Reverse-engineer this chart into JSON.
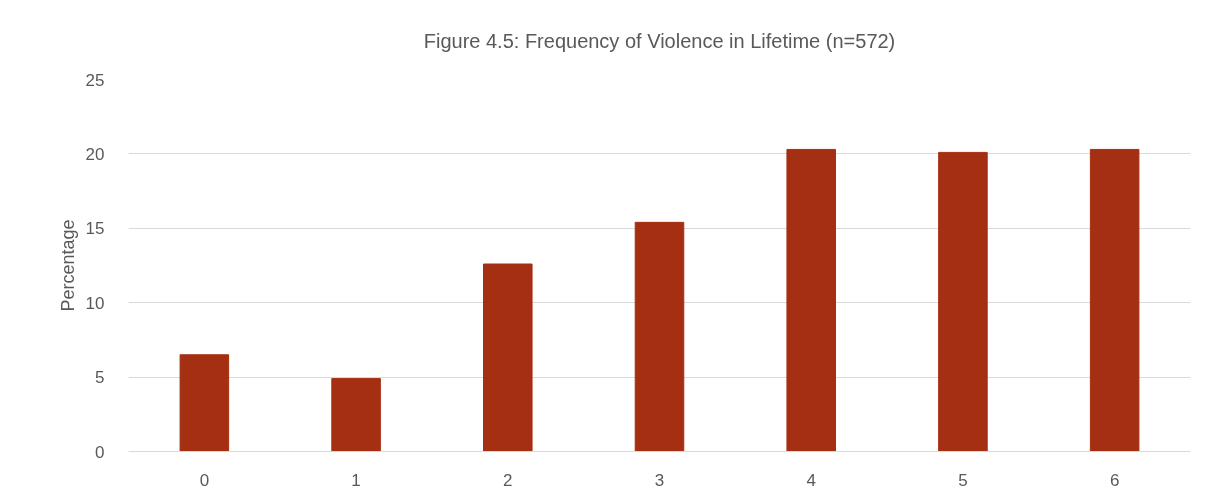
{
  "chart_data": {
    "type": "bar",
    "title": "Figure 4.5: Frequency of Violence in Lifetime (n=572)",
    "ylabel": "Percentage",
    "categories": [
      "0",
      "1",
      "2",
      "3",
      "4",
      "5",
      "6"
    ],
    "values": [
      6.5,
      4.9,
      12.6,
      15.4,
      20.3,
      20.1,
      20.3
    ],
    "color": "#a52f12",
    "ylim": [
      0,
      25
    ],
    "yticks": [
      0,
      5,
      10,
      15,
      20,
      25
    ],
    "grid": "y"
  }
}
